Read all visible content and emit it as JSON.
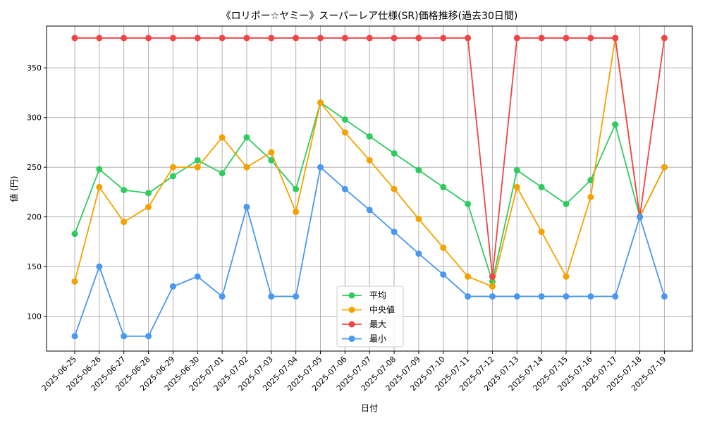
{
  "chart_data": {
    "type": "line",
    "title": "《ロリポー☆ヤミー》スーパーレア仕様(SR)価格推移(過去30日間)",
    "xlabel": "日付",
    "ylabel": "値 (円)",
    "categories": [
      "2025-06-25",
      "2025-06-26",
      "2025-06-27",
      "2025-06-28",
      "2025-06-29",
      "2025-06-30",
      "2025-07-01",
      "2025-07-02",
      "2025-07-03",
      "2025-07-04",
      "2025-07-05",
      "2025-07-06",
      "2025-07-07",
      "2025-07-08",
      "2025-07-09",
      "2025-07-10",
      "2025-07-11",
      "2025-07-12",
      "2025-07-13",
      "2025-07-14",
      "2025-07-15",
      "2025-07-16",
      "2025-07-17",
      "2025-07-18",
      "2025-07-19"
    ],
    "ylim": [
      65,
      392
    ],
    "yticks": [
      100,
      150,
      200,
      250,
      300,
      350
    ],
    "grid": true,
    "legend_position": "bottom-center",
    "series": [
      {
        "name": "平均",
        "color": "#2ecc5e",
        "values": [
          183,
          248,
          227,
          224,
          241,
          257,
          244,
          280,
          257,
          228,
          315,
          298,
          281,
          264,
          247,
          230,
          213,
          135,
          247,
          230,
          213,
          237,
          293,
          200,
          250
        ]
      },
      {
        "name": "中央値",
        "color": "#f5a200",
        "values": [
          135,
          230,
          195,
          210,
          250,
          250,
          280,
          250,
          265,
          205,
          315,
          285,
          257,
          228,
          198,
          169,
          140,
          130,
          230,
          185,
          140,
          220,
          380,
          200,
          250
        ]
      },
      {
        "name": "最大",
        "color": "#ef4545",
        "values": [
          380,
          380,
          380,
          380,
          380,
          380,
          380,
          380,
          380,
          380,
          380,
          380,
          380,
          380,
          380,
          380,
          380,
          140,
          380,
          380,
          380,
          380,
          380,
          200,
          380
        ]
      },
      {
        "name": "最小",
        "color": "#4a98f0",
        "values": [
          80,
          150,
          80,
          80,
          130,
          140,
          120,
          210,
          120,
          120,
          250,
          228,
          207,
          185,
          163,
          142,
          120,
          120,
          120,
          120,
          120,
          120,
          120,
          200,
          120
        ]
      }
    ]
  }
}
